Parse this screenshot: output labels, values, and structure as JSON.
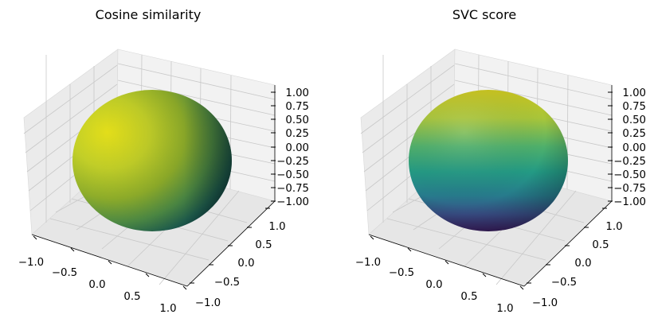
{
  "chart_data": [
    {
      "type": "surface3d",
      "title": "Cosine similarity",
      "surface": "unit sphere",
      "colormap": "viridis",
      "color_pattern": "brightest toward upper-left / front, darkest on the right",
      "x_ticks": [
        "−1.0",
        "−0.5",
        "0.0",
        "0.5",
        "1.0"
      ],
      "y_ticks": [
        "−1.0",
        "−0.5",
        "0.0",
        "0.5",
        "1.0"
      ],
      "z_ticks": [
        "1.00",
        "0.75",
        "0.50",
        "0.25",
        "0.00",
        "−0.25",
        "−0.50",
        "−0.75",
        "−1.00"
      ],
      "xlim": [
        -1,
        1
      ],
      "ylim": [
        -1,
        1
      ],
      "zlim": [
        -1,
        1
      ],
      "grid": true
    },
    {
      "type": "surface3d",
      "title": "SVC score",
      "surface": "unit sphere",
      "colormap": "viridis",
      "color_pattern": "yellow at top, purple at bottom",
      "x_ticks": [
        "−1.0",
        "−0.5",
        "0.0",
        "0.5",
        "1.0"
      ],
      "y_ticks": [
        "−1.0",
        "−0.5",
        "0.0",
        "0.5",
        "1.0"
      ],
      "z_ticks": [
        "1.00",
        "0.75",
        "0.50",
        "0.25",
        "0.00",
        "−0.25",
        "−0.50",
        "−0.75",
        "−1.00"
      ],
      "xlim": [
        -1,
        1
      ],
      "ylim": [
        -1,
        1
      ],
      "zlim": [
        -1,
        1
      ],
      "grid": true
    }
  ]
}
